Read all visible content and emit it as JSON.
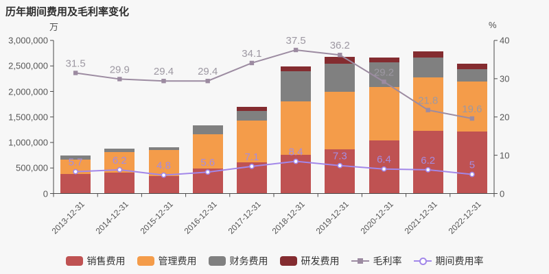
{
  "title": "历年期间费用及毛利率变化",
  "chart_data": {
    "type": "stacked-bar+line",
    "categories": [
      "2013-12-31",
      "2014-12-31",
      "2015-12-31",
      "2016-12-31",
      "2017-12-31",
      "2018-12-31",
      "2019-12-31",
      "2020-12-31",
      "2021-12-31",
      "2022-12-31"
    ],
    "bar_series": [
      {
        "key": "sales",
        "name": "销售费用",
        "color": "#bf5252",
        "values": [
          380000,
          410000,
          340000,
          490000,
          610000,
          760000,
          870000,
          1040000,
          1230000,
          1220000
        ]
      },
      {
        "key": "admin",
        "name": "管理费用",
        "color": "#f49c4a",
        "values": [
          290000,
          400000,
          510000,
          670000,
          820000,
          1050000,
          1120000,
          1050000,
          1050000,
          970000
        ]
      },
      {
        "key": "finance",
        "name": "财务费用",
        "color": "#808080",
        "values": [
          80000,
          70000,
          60000,
          170000,
          190000,
          580000,
          560000,
          480000,
          390000,
          240000
        ]
      },
      {
        "key": "rnd",
        "name": "研发费用",
        "color": "#842c30",
        "values": [
          0,
          0,
          0,
          0,
          80000,
          100000,
          130000,
          90000,
          110000,
          110000
        ]
      }
    ],
    "line_series": [
      {
        "key": "gross-margin",
        "name": "毛利率",
        "color": "#9c8ba1",
        "label_color": "#9d98a2",
        "marker": "square",
        "values": [
          31.5,
          29.9,
          29.4,
          29.4,
          34.1,
          37.5,
          36.2,
          29.2,
          21.8,
          19.6
        ]
      },
      {
        "key": "expense-ratio",
        "name": "期间费用率",
        "color": "#a287e9",
        "label_color": "#a58ce0",
        "marker": "circle-open",
        "values": [
          5.7,
          6.2,
          4.8,
          5.6,
          7.1,
          8.4,
          7.3,
          6.4,
          6.2,
          5
        ]
      }
    ],
    "y_left": {
      "unit": "万",
      "min": 0,
      "max": 3000000,
      "ticks": [
        "3,000,000",
        "2,500,000",
        "2,000,000",
        "1,500,000",
        "1,000,000",
        "500,000",
        "0"
      ]
    },
    "y_right": {
      "unit": "%",
      "min": 0,
      "max": 40,
      "ticks": [
        "40",
        "30",
        "20",
        "10",
        "0"
      ]
    }
  }
}
